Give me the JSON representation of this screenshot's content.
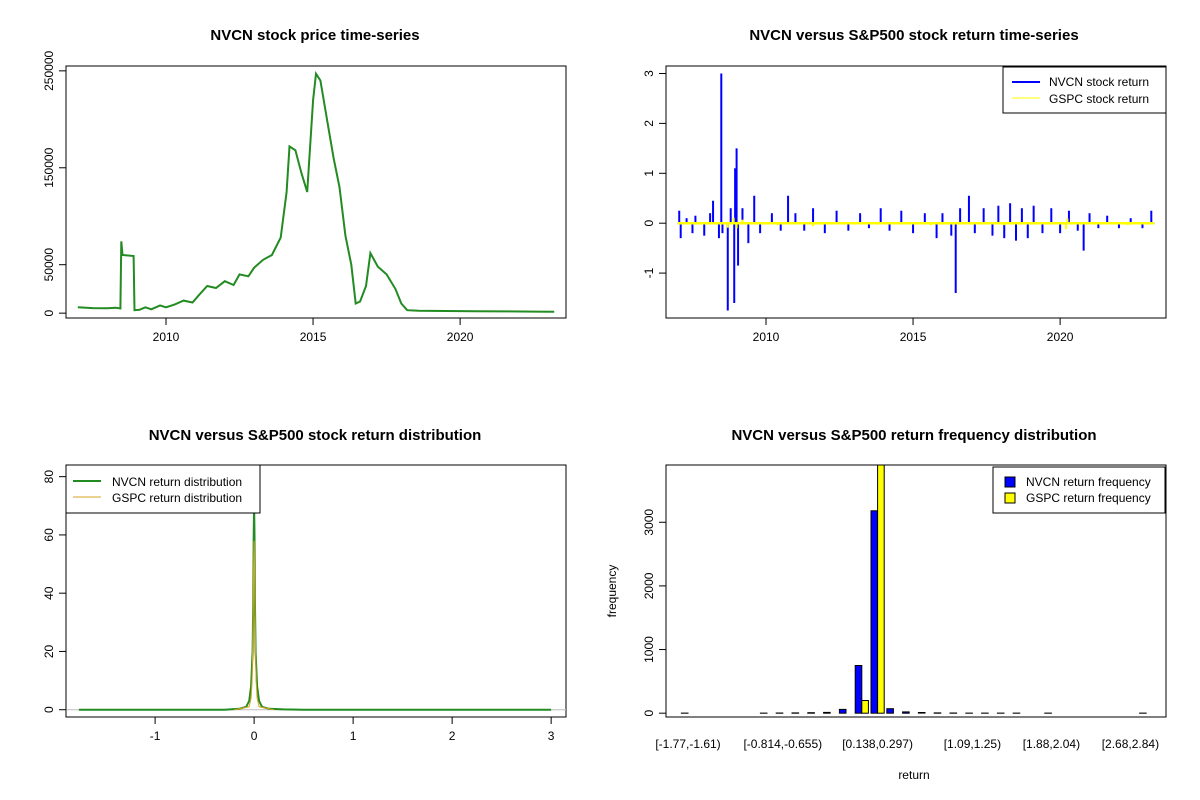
{
  "chart_data": [
    {
      "type": "line",
      "title": "NVCN stock price time-series",
      "xlabel": "",
      "ylabel": "",
      "xlim": [
        2006.6,
        2023.6
      ],
      "ylim": [
        -5000,
        255000
      ],
      "x_ticks": [
        2010,
        2015,
        2020
      ],
      "y_ticks": [
        0,
        50000,
        150000,
        250000
      ],
      "y_tick_labels": [
        "0",
        "50000",
        "150000",
        "250000"
      ],
      "legend": null,
      "series": [
        {
          "color": "#228B22",
          "points": [
            [
              2007.0,
              6000
            ],
            [
              2007.5,
              5200
            ],
            [
              2008.0,
              5000
            ],
            [
              2008.3,
              5500
            ],
            [
              2008.45,
              4800
            ],
            [
              2008.48,
              74000
            ],
            [
              2008.52,
              60000
            ],
            [
              2008.9,
              59000
            ],
            [
              2008.93,
              3000
            ],
            [
              2009.1,
              3500
            ],
            [
              2009.3,
              6000
            ],
            [
              2009.5,
              4000
            ],
            [
              2009.8,
              8000
            ],
            [
              2010.0,
              6000
            ],
            [
              2010.3,
              9000
            ],
            [
              2010.6,
              13000
            ],
            [
              2010.9,
              11000
            ],
            [
              2011.1,
              18000
            ],
            [
              2011.4,
              28000
            ],
            [
              2011.7,
              26000
            ],
            [
              2012.0,
              33000
            ],
            [
              2012.3,
              29000
            ],
            [
              2012.5,
              40000
            ],
            [
              2012.8,
              38000
            ],
            [
              2013.0,
              47000
            ],
            [
              2013.3,
              55000
            ],
            [
              2013.6,
              60000
            ],
            [
              2013.9,
              78000
            ],
            [
              2014.1,
              125000
            ],
            [
              2014.2,
              172000
            ],
            [
              2014.4,
              168000
            ],
            [
              2014.6,
              145000
            ],
            [
              2014.8,
              125000
            ],
            [
              2015.0,
              220000
            ],
            [
              2015.1,
              247000
            ],
            [
              2015.25,
              240000
            ],
            [
              2015.5,
              195000
            ],
            [
              2015.7,
              160000
            ],
            [
              2015.9,
              130000
            ],
            [
              2016.1,
              80000
            ],
            [
              2016.3,
              50000
            ],
            [
              2016.45,
              10000
            ],
            [
              2016.6,
              12000
            ],
            [
              2016.8,
              28000
            ],
            [
              2016.95,
              62000
            ],
            [
              2017.2,
              48000
            ],
            [
              2017.5,
              40000
            ],
            [
              2017.8,
              25000
            ],
            [
              2018.0,
              10000
            ],
            [
              2018.2,
              3000
            ],
            [
              2018.6,
              2500
            ],
            [
              2019.5,
              2200
            ],
            [
              2020.5,
              2000
            ],
            [
              2021.5,
              1800
            ],
            [
              2022.5,
              1600
            ],
            [
              2023.2,
              1500
            ]
          ]
        }
      ]
    },
    {
      "type": "line",
      "title": "NVCN versus S&P500 stock return time-series",
      "xlabel": "",
      "ylabel": "",
      "xlim": [
        2006.6,
        2023.6
      ],
      "ylim": [
        -1.9,
        3.15
      ],
      "x_ticks": [
        2010,
        2015,
        2020
      ],
      "y_ticks": [
        -1,
        0,
        1,
        2,
        3
      ],
      "legend": "top-right",
      "series": [
        {
          "name": "NVCN stock return",
          "color": "#0000FF",
          "spikes": [
            [
              2007.05,
              0.25
            ],
            [
              2007.1,
              -0.3
            ],
            [
              2007.3,
              0.1
            ],
            [
              2007.5,
              -0.2
            ],
            [
              2007.6,
              0.15
            ],
            [
              2007.9,
              -0.25
            ],
            [
              2008.1,
              0.2
            ],
            [
              2008.2,
              0.45
            ],
            [
              2008.4,
              -0.3
            ],
            [
              2008.48,
              3.0
            ],
            [
              2008.52,
              -0.2
            ],
            [
              2008.7,
              -1.75
            ],
            [
              2008.8,
              0.3
            ],
            [
              2008.92,
              -1.6
            ],
            [
              2008.95,
              1.1
            ],
            [
              2009.0,
              1.5
            ],
            [
              2009.05,
              -0.85
            ],
            [
              2009.2,
              0.3
            ],
            [
              2009.4,
              -0.4
            ],
            [
              2009.6,
              0.55
            ],
            [
              2009.8,
              -0.2
            ],
            [
              2010.2,
              0.2
            ],
            [
              2010.5,
              -0.15
            ],
            [
              2010.75,
              0.55
            ],
            [
              2011.0,
              0.2
            ],
            [
              2011.3,
              -0.15
            ],
            [
              2011.6,
              0.3
            ],
            [
              2012.0,
              -0.2
            ],
            [
              2012.4,
              0.25
            ],
            [
              2012.8,
              -0.15
            ],
            [
              2013.2,
              0.2
            ],
            [
              2013.5,
              -0.1
            ],
            [
              2013.9,
              0.3
            ],
            [
              2014.2,
              -0.15
            ],
            [
              2014.6,
              0.25
            ],
            [
              2015.0,
              -0.2
            ],
            [
              2015.4,
              0.2
            ],
            [
              2015.8,
              -0.3
            ],
            [
              2016.0,
              0.2
            ],
            [
              2016.3,
              -0.25
            ],
            [
              2016.45,
              -1.4
            ],
            [
              2016.6,
              0.3
            ],
            [
              2016.9,
              0.55
            ],
            [
              2017.1,
              -0.2
            ],
            [
              2017.4,
              0.3
            ],
            [
              2017.7,
              -0.25
            ],
            [
              2017.9,
              0.35
            ],
            [
              2018.1,
              -0.3
            ],
            [
              2018.3,
              0.4
            ],
            [
              2018.5,
              -0.35
            ],
            [
              2018.7,
              0.3
            ],
            [
              2018.9,
              -0.3
            ],
            [
              2019.1,
              0.35
            ],
            [
              2019.4,
              -0.2
            ],
            [
              2019.7,
              0.3
            ],
            [
              2020.0,
              -0.2
            ],
            [
              2020.3,
              0.25
            ],
            [
              2020.6,
              -0.15
            ],
            [
              2020.8,
              -0.55
            ],
            [
              2021.0,
              0.2
            ],
            [
              2021.3,
              -0.1
            ],
            [
              2021.6,
              0.15
            ],
            [
              2022.0,
              -0.1
            ],
            [
              2022.4,
              0.1
            ],
            [
              2022.8,
              -0.1
            ],
            [
              2023.1,
              0.25
            ]
          ]
        },
        {
          "name": "GSPC stock return",
          "color": "#FFFF00",
          "spikes": [
            [
              2008.7,
              -0.09
            ],
            [
              2008.9,
              0.11
            ],
            [
              2009.0,
              -0.1
            ],
            [
              2009.2,
              0.07
            ],
            [
              2010.4,
              -0.04
            ],
            [
              2011.6,
              -0.06
            ],
            [
              2015.6,
              -0.04
            ],
            [
              2018.1,
              -0.04
            ],
            [
              2020.2,
              -0.12
            ],
            [
              2020.25,
              0.09
            ],
            [
              2022.3,
              -0.04
            ]
          ]
        }
      ]
    },
    {
      "type": "line",
      "title": "NVCN versus S&P500 stock return distribution",
      "xlabel": "",
      "ylabel": "",
      "xlim": [
        -1.9,
        3.15
      ],
      "ylim": [
        -2.5,
        84
      ],
      "x_ticks": [
        -1,
        0,
        1,
        2,
        3
      ],
      "y_ticks": [
        0,
        20,
        40,
        60,
        80
      ],
      "legend": "top-left",
      "series": [
        {
          "name": "NVCN return distribution",
          "color": "#228B22",
          "points": [
            [
              -1.77,
              0
            ],
            [
              -0.3,
              0
            ],
            [
              -0.15,
              0.3
            ],
            [
              -0.08,
              1
            ],
            [
              -0.05,
              3
            ],
            [
              -0.03,
              8
            ],
            [
              -0.015,
              20
            ],
            [
              -0.008,
              38
            ],
            [
              -0.004,
              60
            ],
            [
              0.0,
              70
            ],
            [
              0.004,
              60
            ],
            [
              0.008,
              38
            ],
            [
              0.015,
              20
            ],
            [
              0.03,
              8
            ],
            [
              0.05,
              3
            ],
            [
              0.08,
              1
            ],
            [
              0.15,
              0.3
            ],
            [
              0.3,
              0.1
            ],
            [
              0.5,
              0
            ],
            [
              3.0,
              0
            ]
          ]
        },
        {
          "name": "GSPC return distribution",
          "color": "#DAA520",
          "points": [
            [
              -0.2,
              0
            ],
            [
              -0.05,
              1
            ],
            [
              -0.03,
              4
            ],
            [
              -0.02,
              10
            ],
            [
              -0.01,
              30
            ],
            [
              -0.004,
              50
            ],
            [
              0.0,
              58
            ],
            [
              0.004,
              50
            ],
            [
              0.01,
              30
            ],
            [
              0.02,
              10
            ],
            [
              0.03,
              4
            ],
            [
              0.05,
              1
            ],
            [
              0.2,
              0
            ]
          ]
        }
      ]
    },
    {
      "type": "bar",
      "title": "NVCN versus S&P500 return frequency distribution",
      "xlabel": "return",
      "ylabel": "frequency",
      "ylim": [
        -60,
        3900
      ],
      "y_ticks": [
        0,
        1000,
        2000,
        3000
      ],
      "legend": "top-right",
      "bin_labels_shown": [
        {
          "bin": 0,
          "label": "[-1.77,-1.61)"
        },
        {
          "bin": 6,
          "label": "[-0.814,-0.655)"
        },
        {
          "bin": 12,
          "label": "[0.138,0.297)"
        },
        {
          "bin": 18,
          "label": "[1.09,1.25)"
        },
        {
          "bin": 23,
          "label": "[1.88,2.04)"
        },
        {
          "bin": 28,
          "label": "[2.68,2.84)"
        }
      ],
      "series": [
        {
          "name": "NVCN return frequency",
          "color": "#0000FF",
          "values": [
            1,
            0,
            0,
            0,
            0,
            2,
            3,
            5,
            8,
            12,
            60,
            750,
            3180,
            70,
            20,
            10,
            5,
            3,
            2,
            1,
            1,
            1,
            0,
            1,
            0,
            0,
            0,
            0,
            0,
            1
          ]
        },
        {
          "name": "GSPC return frequency",
          "color": "#FFFF00",
          "values": [
            0,
            0,
            0,
            0,
            0,
            0,
            0,
            0,
            0,
            0,
            0,
            200,
            3900,
            0,
            0,
            0,
            0,
            0,
            0,
            0,
            0,
            0,
            0,
            0,
            0,
            0,
            0,
            0,
            0,
            0
          ]
        }
      ]
    }
  ]
}
